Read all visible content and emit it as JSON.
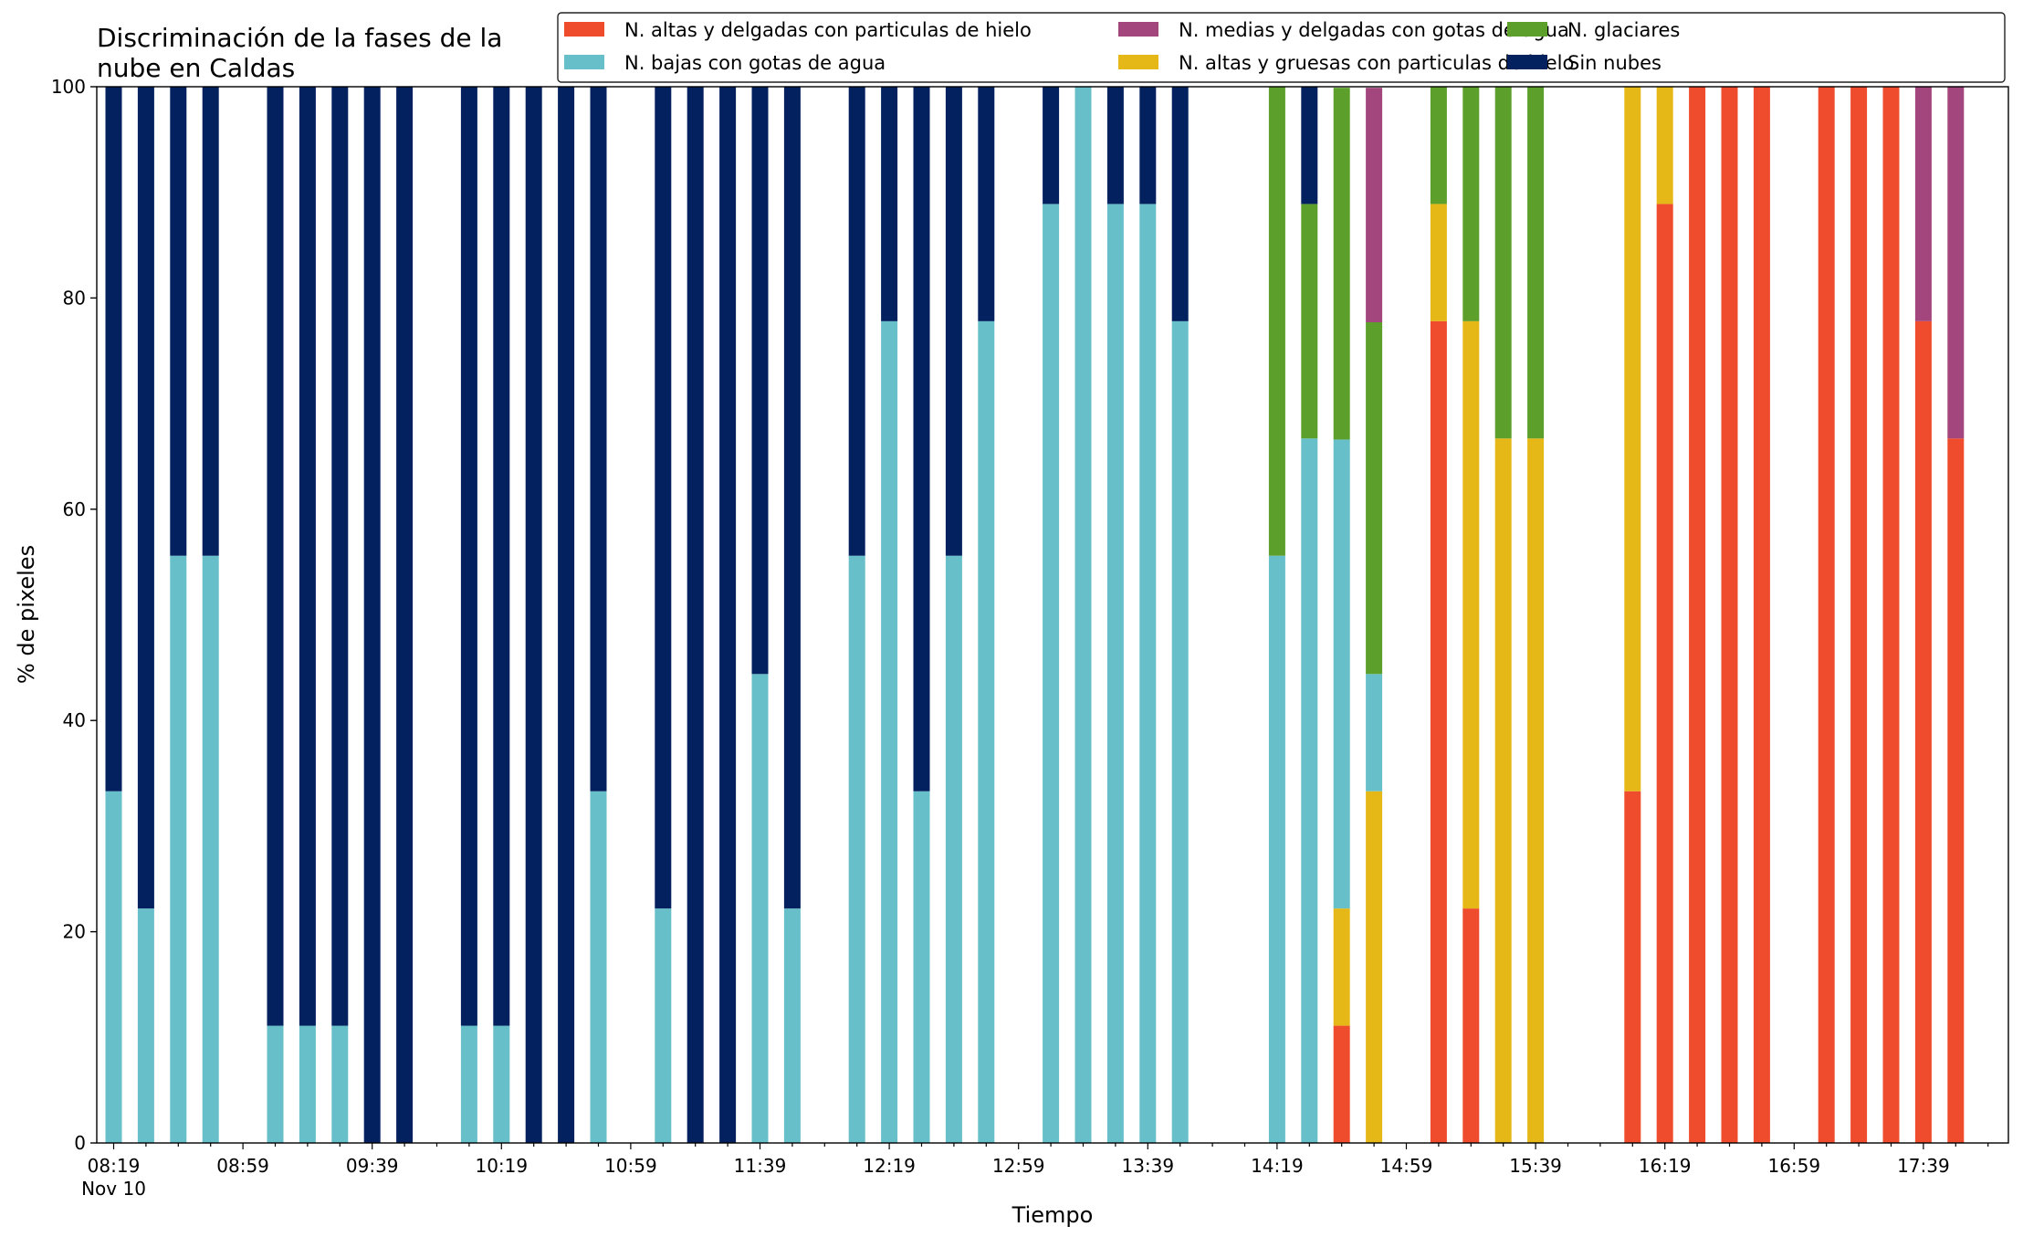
{
  "chart_data": {
    "type": "bar",
    "stacked": true,
    "title": "Discriminación de la fases de la nube en Caldas",
    "title_lines": [
      "Discriminación de la fases de la",
      "nube en Caldas"
    ],
    "xlabel": "Tiempo",
    "ylabel": "% de pixeles",
    "ylim": [
      0,
      100
    ],
    "yticks": [
      0,
      20,
      40,
      60,
      80,
      100
    ],
    "x_start": "08:19",
    "x_interval_minutes": 10,
    "x_slots": 59,
    "xtick_labels": [
      "08:19",
      "08:59",
      "09:39",
      "10:19",
      "10:59",
      "11:39",
      "12:19",
      "12:59",
      "13:39",
      "14:19",
      "14:59",
      "15:39",
      "16:19",
      "16:59",
      "17:39"
    ],
    "xtick_sublabel": "Nov 10",
    "grid": false,
    "legend_position": "top-right",
    "series": [
      {
        "name": "N. altas y delgadas con particulas de hielo",
        "color": "#ee4c2c"
      },
      {
        "name": "N. altas y gruesas con particulas de hielo",
        "color": "#e6b817"
      },
      {
        "name": "N. bajas con gotas de agua",
        "color": "#67bfca"
      },
      {
        "name": "N. glaciares",
        "color": "#5d9f2b"
      },
      {
        "name": "N. medias y delgadas con gotas de agua",
        "color": "#a3467d"
      },
      {
        "name": "Sin nubes",
        "color": "#03215e"
      }
    ],
    "legend_order": [
      0,
      2,
      4,
      1,
      3,
      5
    ],
    "bars": [
      {
        "time": "08:19",
        "values": [
          0,
          0,
          33.3,
          0,
          0,
          66.7
        ]
      },
      {
        "time": "08:29",
        "values": [
          0,
          0,
          22.2,
          0,
          0,
          77.8
        ]
      },
      {
        "time": "08:39",
        "values": [
          0,
          0,
          55.6,
          0,
          0,
          44.4
        ]
      },
      {
        "time": "08:49",
        "values": [
          0,
          0,
          55.6,
          0,
          0,
          44.4
        ]
      },
      {
        "time": "09:09",
        "values": [
          0,
          0,
          11.1,
          0,
          0,
          88.9
        ]
      },
      {
        "time": "09:19",
        "values": [
          0,
          0,
          11.1,
          0,
          0,
          88.9
        ]
      },
      {
        "time": "09:29",
        "values": [
          0,
          0,
          11.1,
          0,
          0,
          88.9
        ]
      },
      {
        "time": "09:39",
        "values": [
          0,
          0,
          0,
          0,
          0,
          100
        ]
      },
      {
        "time": "09:49",
        "values": [
          0,
          0,
          0,
          0,
          0,
          100
        ]
      },
      {
        "time": "10:09",
        "values": [
          0,
          0,
          11.1,
          0,
          0,
          88.9
        ]
      },
      {
        "time": "10:19",
        "values": [
          0,
          0,
          11.1,
          0,
          0,
          88.9
        ]
      },
      {
        "time": "10:29",
        "values": [
          0,
          0,
          0,
          0,
          0,
          100
        ]
      },
      {
        "time": "10:39",
        "values": [
          0,
          0,
          0,
          0,
          0,
          100
        ]
      },
      {
        "time": "10:49",
        "values": [
          0,
          0,
          33.3,
          0,
          0,
          66.7
        ]
      },
      {
        "time": "11:09",
        "values": [
          0,
          0,
          22.2,
          0,
          0,
          77.8
        ]
      },
      {
        "time": "11:19",
        "values": [
          0,
          0,
          0,
          0,
          0,
          100
        ]
      },
      {
        "time": "11:29",
        "values": [
          0,
          0,
          0,
          0,
          0,
          100
        ]
      },
      {
        "time": "11:39",
        "values": [
          0,
          0,
          44.4,
          0,
          0,
          55.6
        ]
      },
      {
        "time": "11:49",
        "values": [
          0,
          0,
          22.2,
          0,
          0,
          77.8
        ]
      },
      {
        "time": "12:09",
        "values": [
          0,
          0,
          55.6,
          0,
          0,
          44.4
        ]
      },
      {
        "time": "12:19",
        "values": [
          0,
          0,
          77.8,
          0,
          0,
          22.2
        ]
      },
      {
        "time": "12:29",
        "values": [
          0,
          0,
          33.3,
          0,
          0,
          66.7
        ]
      },
      {
        "time": "12:39",
        "values": [
          0,
          0,
          55.6,
          0,
          0,
          44.4
        ]
      },
      {
        "time": "12:49",
        "values": [
          0,
          0,
          77.8,
          0,
          0,
          22.2
        ]
      },
      {
        "time": "13:09",
        "values": [
          0,
          0,
          88.9,
          0,
          0,
          11.1
        ]
      },
      {
        "time": "13:19",
        "values": [
          0,
          0,
          100,
          0,
          0,
          0
        ]
      },
      {
        "time": "13:29",
        "values": [
          0,
          0,
          88.9,
          0,
          0,
          11.1
        ]
      },
      {
        "time": "13:39",
        "values": [
          0,
          0,
          88.9,
          0,
          0,
          11.1
        ]
      },
      {
        "time": "13:49",
        "values": [
          0,
          0,
          77.8,
          0,
          0,
          22.2
        ]
      },
      {
        "time": "14:19",
        "values": [
          0,
          0,
          55.6,
          44.4,
          0,
          0
        ]
      },
      {
        "time": "14:29",
        "values": [
          0,
          0,
          66.7,
          22.2,
          0,
          11.1
        ]
      },
      {
        "time": "14:39",
        "values": [
          11.1,
          11.1,
          44.4,
          33.3,
          0,
          0
        ]
      },
      {
        "time": "14:49",
        "values": [
          0,
          33.3,
          11.1,
          33.3,
          22.2,
          0
        ]
      },
      {
        "time": "15:09",
        "values": [
          77.8,
          11.1,
          0,
          11.1,
          0,
          0
        ]
      },
      {
        "time": "15:19",
        "values": [
          22.2,
          55.6,
          0,
          22.2,
          0,
          0
        ]
      },
      {
        "time": "15:29",
        "values": [
          0,
          66.7,
          0,
          33.3,
          0,
          0
        ]
      },
      {
        "time": "15:39",
        "values": [
          0,
          66.7,
          0,
          33.3,
          0,
          0
        ]
      },
      {
        "time": "16:09",
        "values": [
          33.3,
          66.7,
          0,
          0,
          0,
          0
        ]
      },
      {
        "time": "16:19",
        "values": [
          88.9,
          11.1,
          0,
          0,
          0,
          0
        ]
      },
      {
        "time": "16:29",
        "values": [
          100,
          0,
          0,
          0,
          0,
          0
        ]
      },
      {
        "time": "16:39",
        "values": [
          100,
          0,
          0,
          0,
          0,
          0
        ]
      },
      {
        "time": "16:49",
        "values": [
          100,
          0,
          0,
          0,
          0,
          0
        ]
      },
      {
        "time": "17:09",
        "values": [
          100,
          0,
          0,
          0,
          0,
          0
        ]
      },
      {
        "time": "17:19",
        "values": [
          100,
          0,
          0,
          0,
          0,
          0
        ]
      },
      {
        "time": "17:29",
        "values": [
          100,
          0,
          0,
          0,
          0,
          0
        ]
      },
      {
        "time": "17:39",
        "values": [
          77.8,
          0,
          0,
          0,
          22.2,
          0
        ]
      },
      {
        "time": "17:49",
        "values": [
          66.7,
          0,
          0,
          0,
          33.3,
          0
        ]
      }
    ]
  }
}
